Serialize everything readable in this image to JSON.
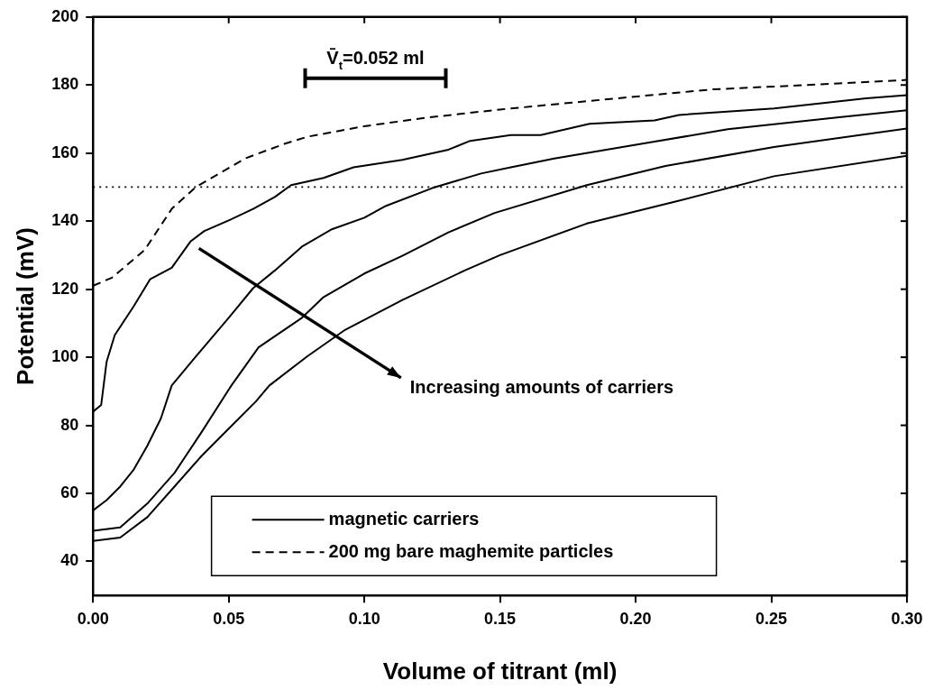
{
  "chart_data": {
    "type": "line",
    "xlabel": "Volume of titrant (ml)",
    "ylabel": "Potential (mV)",
    "xlim": [
      0,
      0.3
    ],
    "xticks": [
      {
        "value": 0,
        "label": "0.00"
      },
      {
        "value": 0.05,
        "label": "0.05"
      },
      {
        "value": 0.1,
        "label": "0.10"
      },
      {
        "value": 0.15,
        "label": "0.15"
      },
      {
        "value": 0.2,
        "label": "0.20"
      },
      {
        "value": 0.25,
        "label": "0.25"
      },
      {
        "value": 0.3,
        "label": "0.30"
      }
    ],
    "ylim": [
      30,
      200
    ],
    "yticks": [
      40,
      60,
      80,
      100,
      120,
      140,
      160,
      180,
      200
    ],
    "grid": false,
    "legend": "bottom",
    "marker": "none",
    "ref_lines": [
      {
        "axis": "y",
        "value": 150,
        "color": "#000000",
        "line_style": "dotted"
      }
    ],
    "annotations": [
      "V̄$_{t}$=0.052 ml",
      "Increasing amounts of carriers"
    ],
    "series": [
      {
        "name": "magnetic carriers",
        "color": "#000000",
        "line_style": "solid",
        "x": [
          0,
          0.003,
          0.005,
          0.008,
          0.015,
          0.021,
          0.029,
          0.036,
          0.041,
          0.05,
          0.059,
          0.067,
          0.073,
          0.085,
          0.096,
          0.114,
          0.131,
          0.139,
          0.154,
          0.165,
          0.183,
          0.207,
          0.216,
          0.251,
          0.285,
          0.3
        ],
        "values": [
          84,
          86,
          98.7,
          106.5,
          115,
          122.9,
          126.3,
          134.1,
          137.1,
          140.2,
          143.6,
          147.1,
          150.6,
          152.7,
          155.8,
          158,
          161,
          163.6,
          165.3,
          165.3,
          168.6,
          169.6,
          171.2,
          173.1,
          176.1,
          177
        ]
      },
      {
        "color": "#000000",
        "line_style": "solid",
        "x": [
          0,
          0.005,
          0.01,
          0.015,
          0.02,
          0.025,
          0.029,
          0.038,
          0.05,
          0.059,
          0.067,
          0.077,
          0.088,
          0.1,
          0.108,
          0.125,
          0.143,
          0.154,
          0.17,
          0.205,
          0.234,
          0.275,
          0.3
        ],
        "values": [
          55,
          58,
          62,
          67,
          74,
          82,
          91.7,
          100.3,
          111.6,
          120.3,
          125.5,
          132.5,
          137.6,
          141,
          144.5,
          149.7,
          154,
          155.8,
          158.4,
          163.1,
          167,
          170.5,
          172.6
        ]
      },
      {
        "color": "#000000",
        "line_style": "solid",
        "x": [
          0,
          0.01,
          0.02,
          0.03,
          0.04,
          0.051,
          0.061,
          0.077,
          0.085,
          0.1,
          0.114,
          0.131,
          0.148,
          0.182,
          0.211,
          0.251,
          0.3
        ],
        "values": [
          49,
          50,
          57,
          66,
          78,
          91.7,
          102.9,
          111.6,
          117.7,
          124.6,
          129.8,
          136.7,
          142.4,
          150.6,
          156.2,
          161.8,
          167.2
        ]
      },
      {
        "color": "#000000",
        "line_style": "solid",
        "x": [
          0,
          0.01,
          0.02,
          0.03,
          0.04,
          0.05,
          0.06,
          0.065,
          0.079,
          0.093,
          0.114,
          0.137,
          0.15,
          0.182,
          0.217,
          0.251,
          0.3
        ],
        "values": [
          46,
          47,
          53,
          62,
          71,
          79,
          87,
          91.7,
          100.3,
          108.1,
          116.8,
          125.5,
          130,
          139.3,
          146.2,
          153.2,
          159.2
        ]
      },
      {
        "name": "200 mg bare maghemite particles",
        "color": "#000000",
        "line_style": "dashed",
        "x": [
          0,
          0.007,
          0.019,
          0.029,
          0.038,
          0.0465,
          0.056,
          0.0705,
          0.079,
          0.1,
          0.124,
          0.15,
          0.188,
          0.228,
          0.263,
          0.3
        ],
        "values": [
          121,
          123.4,
          131.5,
          143.6,
          150.1,
          154,
          158.4,
          162.7,
          164.8,
          167.9,
          170.5,
          172.8,
          175.7,
          178.7,
          180,
          181.5
        ]
      }
    ]
  }
}
